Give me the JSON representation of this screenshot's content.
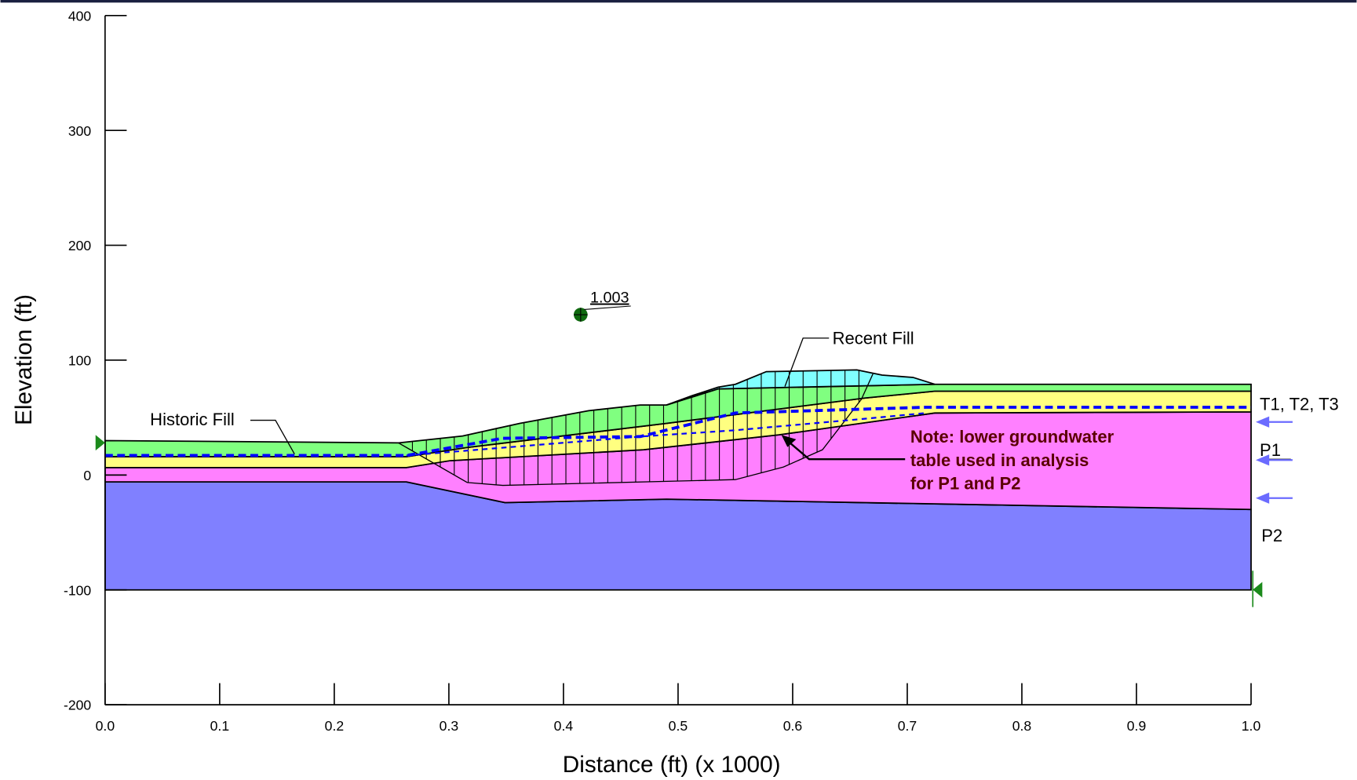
{
  "chart_data": {
    "type": "cross-section",
    "xlabel": "Distance (ft) (x  1000)",
    "ylabel": "Elevation (ft)",
    "xlim": [
      0,
      1
    ],
    "ylim": [
      -200,
      400
    ],
    "xticks": [
      {
        "value": 0,
        "label": "0.0"
      },
      0.1,
      0.2,
      0.3,
      0.4,
      0.5,
      0.6,
      0.7,
      0.8,
      0.9,
      {
        "value": 1,
        "label": "1.0"
      }
    ],
    "yticks": [
      -200,
      -100,
      0,
      100,
      200,
      300,
      400
    ],
    "regions": [
      {
        "color": "#8080ff",
        "x": [
          0,
          0,
          0.263,
          0.349,
          0.49,
          1,
          1
        ],
        "y": [
          -100,
          -6,
          -6,
          -24,
          -21,
          -30,
          -100
        ]
      },
      {
        "color": "#ff80ff",
        "x": [
          0,
          0.263,
          0.301,
          0.47,
          0.588,
          0.724,
          1,
          1,
          0.49,
          0.349,
          0.263,
          0
        ],
        "y": [
          6.5,
          6.5,
          12.5,
          22,
          35,
          54,
          55,
          -30,
          -21,
          -24,
          -6,
          -6
        ]
      },
      {
        "color": "#ffff80",
        "x": [
          0,
          0.263,
          0.316,
          0.49,
          0.663,
          0.724,
          1,
          1,
          0.724,
          0.588,
          0.47,
          0.301,
          0.263,
          0
        ],
        "y": [
          16,
          16,
          24,
          45,
          67,
          73,
          73,
          55,
          54,
          35,
          22,
          12.5,
          6.5,
          6.5
        ]
      },
      {
        "name": "Historic Fill",
        "color": "#80ff80",
        "x": [
          0,
          0.256,
          0.312,
          0.362,
          0.422,
          0.467,
          0.49,
          0.535,
          0.724,
          1,
          1,
          0.724,
          0.663,
          0.49,
          0.316,
          0.263,
          0
        ],
        "y": [
          30,
          28,
          34,
          45,
          56,
          61,
          61,
          75,
          79,
          79,
          73,
          73,
          67,
          45,
          24,
          16,
          16
        ]
      },
      {
        "name": "Recent Fill",
        "color": "#80ffff",
        "x": [
          0.49,
          0.512,
          0.535,
          0.55,
          0.577,
          0.656,
          0.678,
          0.705,
          0.724,
          0.535
        ],
        "y": [
          61,
          69,
          76.5,
          79,
          90,
          91.5,
          87,
          85,
          79,
          75
        ]
      }
    ],
    "slip_surface": {
      "x": [
        0.256,
        0.316,
        0.347,
        0.55,
        0.592,
        0.626,
        0.66,
        0.67
      ],
      "y": [
        28,
        -6.5,
        -9,
        -4,
        7,
        22,
        66,
        88
      ]
    },
    "groundwater": [
      {
        "color": "#0000ff",
        "x": [
          0,
          0.263,
          0.347,
          0.467,
          0.55,
          0.716,
          1
        ],
        "y": [
          17,
          17,
          32,
          33.5,
          54,
          59,
          59
        ]
      },
      {
        "color": "#0000ff",
        "x": [
          0.263,
          0.467,
          0.55,
          0.663,
          0.716
        ],
        "y": [
          17,
          33.5,
          39,
          49,
          54
        ]
      }
    ],
    "center": {
      "x": 0.415,
      "y": 139.6,
      "factor_of_safety": 1.003
    },
    "labels": {
      "top": "T1, T2, T3",
      "p1": "P1",
      "p2": "P2"
    },
    "note": [
      "Note: lower groundwater",
      "table used in analysis",
      "for P1 and P2"
    ]
  }
}
